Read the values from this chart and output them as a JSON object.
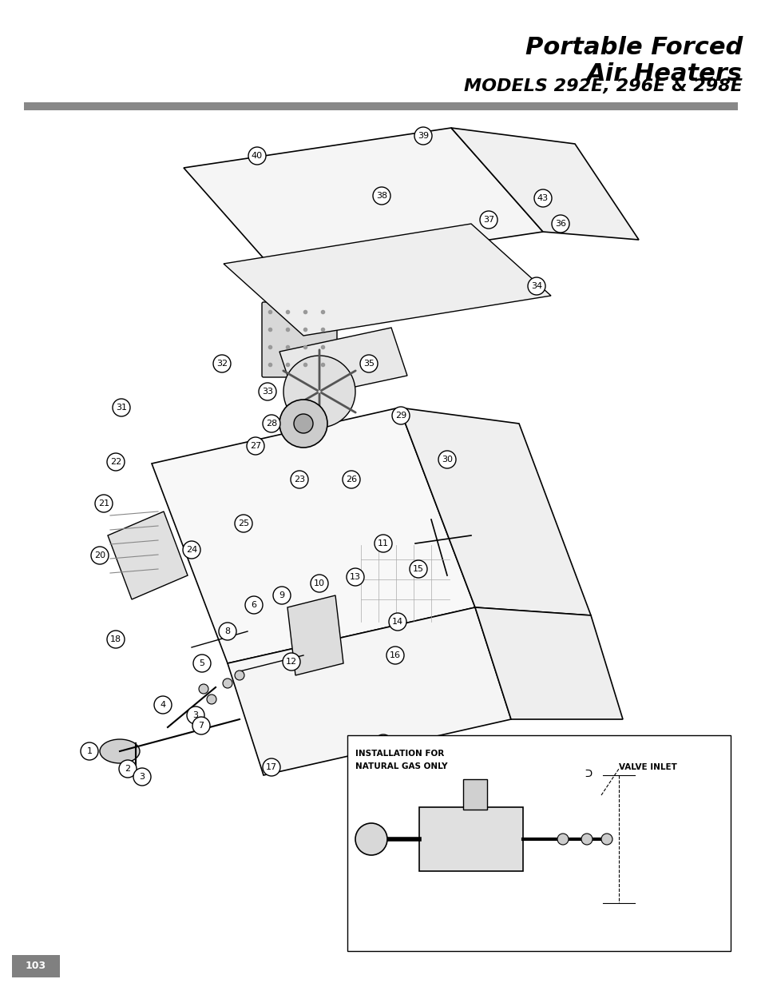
{
  "title_line1": "Portable Forced",
  "title_line2": "Air Heaters",
  "subtitle": "MODELS 292E, 296E & 298E",
  "page_number": "103",
  "background_color": "#ffffff",
  "title_fontsize": 22,
  "subtitle_fontsize": 16,
  "page_bg": "#808080",
  "header_bar_color": "#888888",
  "install_text_line1": "INSTALLATION FOR",
  "install_text_line2": "NATURAL GAS ONLY",
  "valve_inlet_text": "VALVE INLET"
}
